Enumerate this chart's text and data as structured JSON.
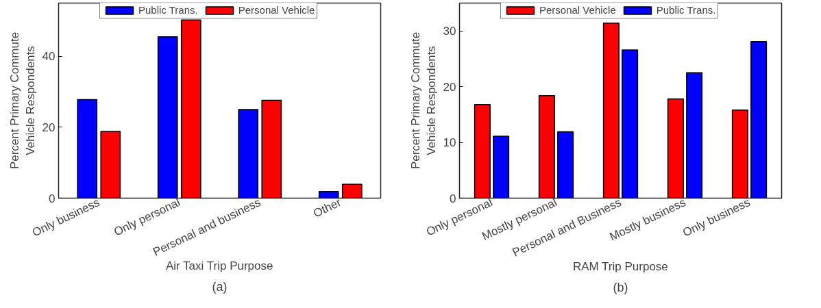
{
  "chart_data": [
    {
      "type": "bar",
      "xlabel": "Air Taxi Trip Purpose",
      "ylabel": "Percent Primary Commute Vehicle Respondents",
      "categories": [
        "Only business",
        "Only personal",
        "Personal and business",
        "Other"
      ],
      "series": [
        {
          "name": "Public Trans.",
          "color": "#0000ff",
          "values": [
            27.8,
            45.5,
            25.0,
            1.9
          ]
        },
        {
          "name": "Personal Vehicle",
          "color": "#ff0000",
          "values": [
            18.8,
            50.2,
            27.6,
            3.9
          ]
        }
      ],
      "ylim": [
        0,
        55
      ],
      "yticks": [
        0,
        20,
        40
      ],
      "grid": false,
      "legend": "top",
      "annotations": [
        "(a)"
      ]
    },
    {
      "type": "bar",
      "xlabel": "RAM Trip Purpose",
      "ylabel": "Percent Primary Commute Vehicle Respondents",
      "categories": [
        "Only personal",
        "Mostly personal",
        "Personal and Business",
        "Mostly business",
        "Only business"
      ],
      "series": [
        {
          "name": "Personal Vehicle",
          "color": "#ff0000",
          "values": [
            16.8,
            18.4,
            31.4,
            17.8,
            15.8
          ]
        },
        {
          "name": "Public Trans.",
          "color": "#0000ff",
          "values": [
            11.1,
            11.9,
            26.6,
            22.5,
            28.1
          ]
        }
      ],
      "ylim": [
        0,
        35
      ],
      "yticks": [
        0,
        10,
        20,
        30
      ],
      "grid": false,
      "legend": "top",
      "annotations": [
        "(b)"
      ]
    }
  ]
}
